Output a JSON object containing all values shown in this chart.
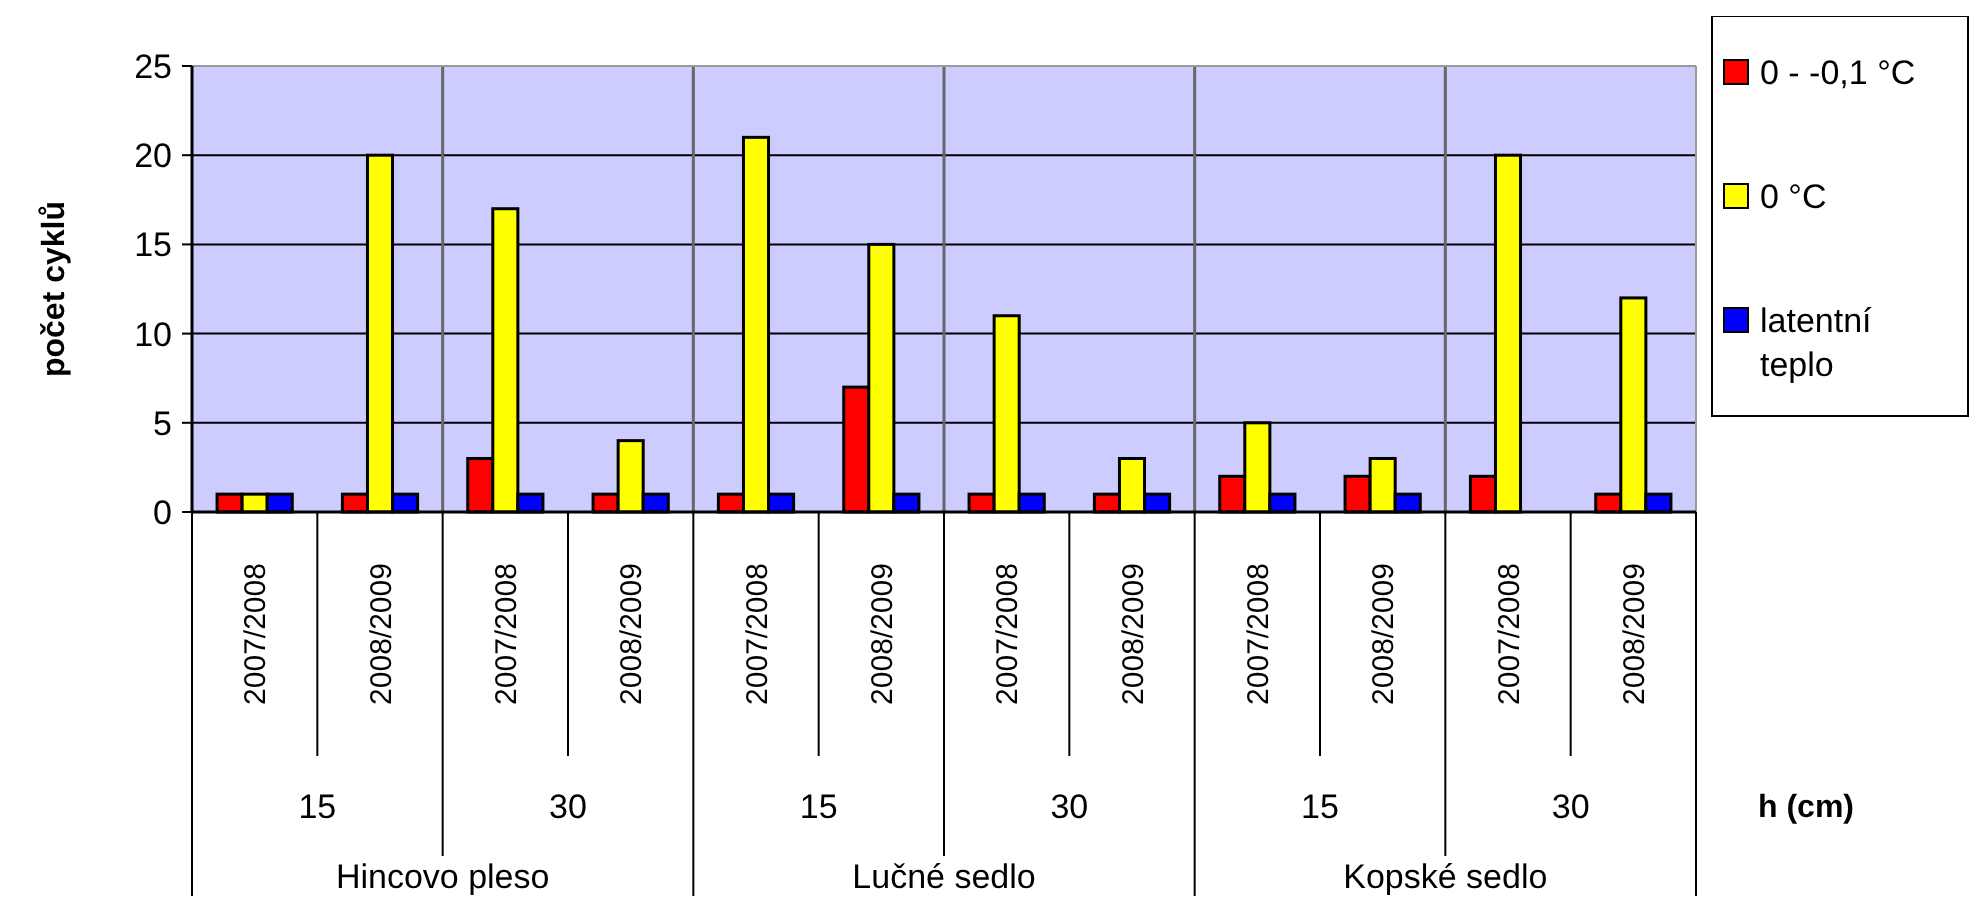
{
  "chart_data": {
    "type": "bar",
    "ylabel": "počet cyklů",
    "xlabel": "h (cm)",
    "categories": [
      "2007/2008",
      "2008/2009",
      "2007/2008",
      "2008/2009",
      "2007/2008",
      "2008/2009",
      "2007/2008",
      "2008/2009",
      "2007/2008",
      "2008/2009",
      "2007/2008",
      "2008/2009"
    ],
    "annotations": [
      "15",
      "30",
      "15",
      "30",
      "15",
      "30",
      "Hincovo pleso",
      "Lučné sedlo",
      "Kopské sedlo"
    ],
    "series": [
      {
        "name": "0 - -0,1 °C",
        "color": "#ff0000",
        "values": [
          1,
          1,
          3,
          1,
          1,
          7,
          1,
          1,
          2,
          2,
          2,
          1
        ]
      },
      {
        "name": "0 °C",
        "color": "#ffff00",
        "values": [
          1,
          20,
          17,
          4,
          21,
          15,
          11,
          3,
          5,
          3,
          20,
          12
        ]
      },
      {
        "name": "latentní teplo",
        "color": "#0000ff",
        "values": [
          1,
          1,
          1,
          1,
          1,
          1,
          1,
          1,
          1,
          1,
          null,
          1
        ]
      }
    ],
    "ylim": [
      0,
      25
    ],
    "yticks": [
      0,
      5,
      10,
      15,
      20,
      25
    ],
    "grid": "y",
    "legend": "right"
  }
}
